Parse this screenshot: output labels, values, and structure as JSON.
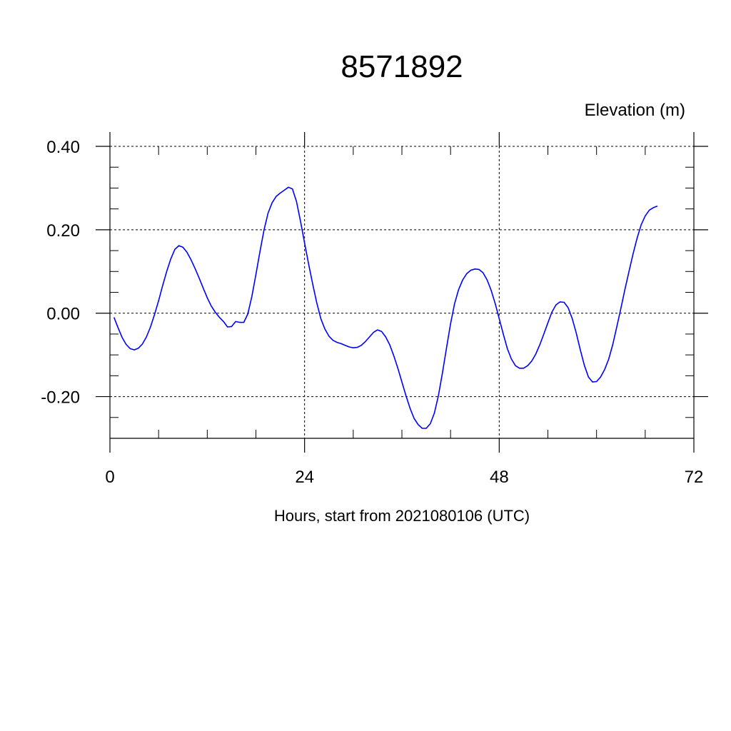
{
  "chart_data": {
    "type": "line",
    "title": "8571892",
    "ylabel": "Elevation (m)",
    "xlabel": "Hours, start from 2021080106 (UTC)",
    "xlim": [
      0,
      72
    ],
    "ylim": [
      -0.3,
      0.4
    ],
    "x_ticks": [
      0,
      24,
      48,
      72
    ],
    "x_tick_labels": [
      "0",
      "24",
      "48",
      "72"
    ],
    "y_ticks": [
      -0.2,
      0.0,
      0.2,
      0.4
    ],
    "y_tick_labels": [
      "-0.20",
      "0.00",
      "0.20",
      "0.40"
    ],
    "grid": "dashed at major ticks",
    "colors": {
      "line": "#0000ff",
      "axes": "#000000"
    },
    "series": [
      {
        "points": [
          [
            0.5,
            -0.01
          ],
          [
            1.0,
            -0.035
          ],
          [
            1.5,
            -0.058
          ],
          [
            2.0,
            -0.075
          ],
          [
            2.5,
            -0.085
          ],
          [
            3.0,
            -0.088
          ],
          [
            3.5,
            -0.084
          ],
          [
            4.0,
            -0.074
          ],
          [
            4.5,
            -0.057
          ],
          [
            5.0,
            -0.033
          ],
          [
            5.5,
            -0.003
          ],
          [
            6.0,
            0.03
          ],
          [
            6.5,
            0.066
          ],
          [
            7.0,
            0.1
          ],
          [
            7.5,
            0.13
          ],
          [
            8.0,
            0.153
          ],
          [
            8.5,
            0.162
          ],
          [
            9.0,
            0.158
          ],
          [
            9.5,
            0.146
          ],
          [
            10.0,
            0.128
          ],
          [
            10.5,
            0.107
          ],
          [
            11.0,
            0.084
          ],
          [
            11.5,
            0.06
          ],
          [
            12.0,
            0.037
          ],
          [
            12.5,
            0.017
          ],
          [
            13.0,
            0.002
          ],
          [
            13.5,
            -0.01
          ],
          [
            14.0,
            -0.02
          ],
          [
            14.5,
            -0.033
          ],
          [
            15.0,
            -0.032
          ],
          [
            15.5,
            -0.02
          ],
          [
            16.0,
            -0.022
          ],
          [
            16.5,
            -0.022
          ],
          [
            17.0,
            -0.002
          ],
          [
            17.5,
            0.04
          ],
          [
            18.0,
            0.093
          ],
          [
            18.5,
            0.148
          ],
          [
            19.0,
            0.2
          ],
          [
            19.5,
            0.24
          ],
          [
            20.0,
            0.265
          ],
          [
            20.5,
            0.28
          ],
          [
            21.0,
            0.288
          ],
          [
            21.5,
            0.295
          ],
          [
            22.0,
            0.302
          ],
          [
            22.5,
            0.298
          ],
          [
            23.0,
            0.268
          ],
          [
            23.5,
            0.22
          ],
          [
            24.0,
            0.168
          ],
          [
            24.5,
            0.118
          ],
          [
            25.0,
            0.07
          ],
          [
            25.5,
            0.025
          ],
          [
            26.0,
            -0.013
          ],
          [
            26.5,
            -0.038
          ],
          [
            27.0,
            -0.055
          ],
          [
            27.5,
            -0.065
          ],
          [
            28.0,
            -0.07
          ],
          [
            28.5,
            -0.073
          ],
          [
            29.0,
            -0.077
          ],
          [
            29.5,
            -0.081
          ],
          [
            30.0,
            -0.083
          ],
          [
            30.5,
            -0.082
          ],
          [
            31.0,
            -0.077
          ],
          [
            31.5,
            -0.068
          ],
          [
            32.0,
            -0.057
          ],
          [
            32.5,
            -0.046
          ],
          [
            33.0,
            -0.04
          ],
          [
            33.5,
            -0.044
          ],
          [
            34.0,
            -0.057
          ],
          [
            34.5,
            -0.076
          ],
          [
            35.0,
            -0.102
          ],
          [
            35.5,
            -0.132
          ],
          [
            36.0,
            -0.165
          ],
          [
            36.5,
            -0.198
          ],
          [
            37.0,
            -0.228
          ],
          [
            37.5,
            -0.252
          ],
          [
            38.0,
            -0.267
          ],
          [
            38.5,
            -0.276
          ],
          [
            39.0,
            -0.276
          ],
          [
            39.5,
            -0.265
          ],
          [
            40.0,
            -0.24
          ],
          [
            40.5,
            -0.198
          ],
          [
            41.0,
            -0.143
          ],
          [
            41.5,
            -0.083
          ],
          [
            42.0,
            -0.025
          ],
          [
            42.5,
            0.023
          ],
          [
            43.0,
            0.057
          ],
          [
            43.5,
            0.08
          ],
          [
            44.0,
            0.095
          ],
          [
            44.5,
            0.103
          ],
          [
            45.0,
            0.106
          ],
          [
            45.5,
            0.105
          ],
          [
            46.0,
            0.097
          ],
          [
            46.5,
            0.08
          ],
          [
            47.0,
            0.055
          ],
          [
            47.5,
            0.023
          ],
          [
            48.0,
            -0.013
          ],
          [
            48.5,
            -0.05
          ],
          [
            49.0,
            -0.085
          ],
          [
            49.5,
            -0.11
          ],
          [
            50.0,
            -0.126
          ],
          [
            50.5,
            -0.132
          ],
          [
            51.0,
            -0.132
          ],
          [
            51.5,
            -0.126
          ],
          [
            52.0,
            -0.115
          ],
          [
            52.5,
            -0.098
          ],
          [
            53.0,
            -0.076
          ],
          [
            53.5,
            -0.05
          ],
          [
            54.0,
            -0.023
          ],
          [
            54.5,
            0.003
          ],
          [
            55.0,
            0.02
          ],
          [
            55.5,
            0.027
          ],
          [
            56.0,
            0.026
          ],
          [
            56.5,
            0.013
          ],
          [
            57.0,
            -0.013
          ],
          [
            57.5,
            -0.048
          ],
          [
            58.0,
            -0.088
          ],
          [
            58.5,
            -0.125
          ],
          [
            59.0,
            -0.153
          ],
          [
            59.5,
            -0.165
          ],
          [
            60.0,
            -0.164
          ],
          [
            60.5,
            -0.153
          ],
          [
            61.0,
            -0.135
          ],
          [
            61.5,
            -0.11
          ],
          [
            62.0,
            -0.075
          ],
          [
            62.5,
            -0.032
          ],
          [
            63.0,
            0.012
          ],
          [
            63.5,
            0.057
          ],
          [
            64.0,
            0.1
          ],
          [
            64.5,
            0.142
          ],
          [
            65.0,
            0.18
          ],
          [
            65.5,
            0.212
          ],
          [
            66.0,
            0.233
          ],
          [
            66.5,
            0.247
          ],
          [
            67.0,
            0.253
          ],
          [
            67.5,
            0.257
          ]
        ]
      }
    ]
  }
}
